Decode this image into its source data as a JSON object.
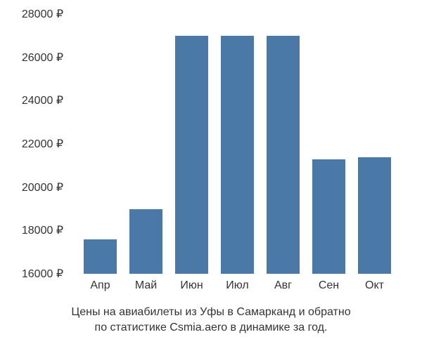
{
  "chart": {
    "type": "bar",
    "categories": [
      "Апр",
      "Май",
      "Июн",
      "Июл",
      "Авг",
      "Сен",
      "Окт"
    ],
    "values": [
      17600,
      19000,
      27000,
      27000,
      27000,
      21300,
      21400
    ],
    "bar_color": "#4a79a7",
    "background_color": "#ffffff",
    "ylim": [
      16000,
      28000
    ],
    "yticks": [
      16000,
      18000,
      20000,
      22000,
      24000,
      26000,
      28000
    ],
    "ytick_labels": [
      "16000 ₽",
      "18000 ₽",
      "20000 ₽",
      "22000 ₽",
      "24000 ₽",
      "26000 ₽",
      "28000 ₽"
    ],
    "tick_fontsize": 16,
    "tick_color": "#333333",
    "bar_width": 0.72,
    "caption_line1": "Цены на авиабилеты из Уфы в Самарканд и обратно",
    "caption_line2": "по статистике Csmia.aero в динамике за год.",
    "caption_fontsize": 16,
    "caption_color": "#333333"
  }
}
